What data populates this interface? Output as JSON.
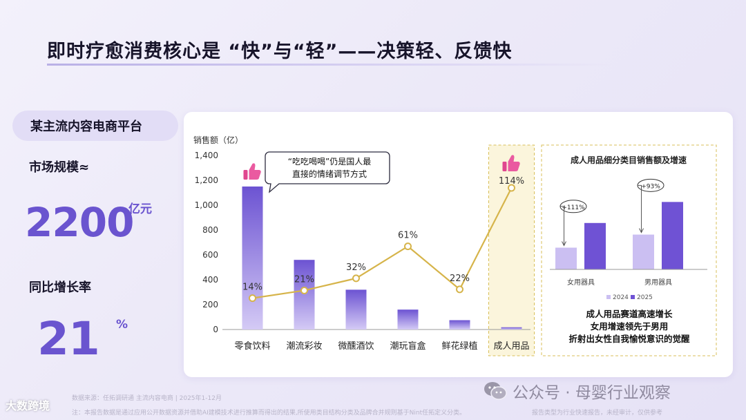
{
  "title": "即时疗愈消费核心是 “快”与“轻”——决策轻、反馈快",
  "platform": "某主流内容电商平台",
  "market_size": {
    "label": "市场规模≈",
    "value": "2200",
    "unit": "亿元"
  },
  "yoy_growth": {
    "label": "同比增长率",
    "value": "21",
    "unit": "%"
  },
  "chart_data": [
    {
      "type": "bar",
      "ylabel": "销售额（亿）",
      "ylim": [
        0,
        1400
      ],
      "yticks": [
        "0",
        "200",
        "400",
        "600",
        "800",
        "1,000",
        "1,200",
        "1,400"
      ],
      "categories": [
        "零食饮料",
        "潮流彩妆",
        "微醺酒饮",
        "潮玩盲盒",
        "鲜花绿植",
        "成人用品"
      ],
      "values": [
        1150,
        560,
        320,
        160,
        75,
        18
      ],
      "growth_line": {
        "values": [
          14,
          21,
          32,
          61,
          22,
          114
        ],
        "labels": [
          "14%",
          "21%",
          "32%",
          "61%",
          "22%",
          "114%"
        ]
      },
      "callout": "“吃吃喝喝”仍是国人最直接的情绪调节方式",
      "callout_lines": [
        "“吃吃喝喝”仍是国人最",
        "直接的情绪调节方式"
      ],
      "highlight_icons": [
        "thumbs-up-icon",
        "thumbs-up-icon"
      ],
      "colors": {
        "bar": "#7b63d8",
        "bar_light": "#ccc1f3",
        "line": "#d6b44a",
        "highlight": "#fbf5dc"
      }
    },
    {
      "type": "bar",
      "title": "成人用品细分类目销售额及增速",
      "categories": [
        "女用器具",
        "男用器具"
      ],
      "series": [
        {
          "name": "2024",
          "values": [
            30,
            48
          ]
        },
        {
          "name": "2025",
          "values": [
            64,
            93
          ]
        }
      ],
      "growth_labels": [
        "+111%",
        "+93%"
      ],
      "colors": {
        "2024": "#cbbff2",
        "2025": "#6f52d4"
      },
      "notes": [
        "成人用品赛道高速增长",
        "女用增速领先于男用",
        "折射出女性自我愉悦意识的觉醒"
      ]
    }
  ],
  "footer": {
    "source": "数据来源：任拓调研通 主流内容电商 | 2025年1-12月",
    "method": "注：本报告数据是通过应用公开数据资源并借助AI建模技术进行推算而得出的结果,所使用类目结构分类及品牌合并规则基于Nint任拓定义分类。",
    "disclaimer": "报告类型为行业快速报告，未经审计，仅供参考"
  },
  "watermark_left": "大数跨境",
  "watermark_right": "公众号 · 母婴行业观察"
}
